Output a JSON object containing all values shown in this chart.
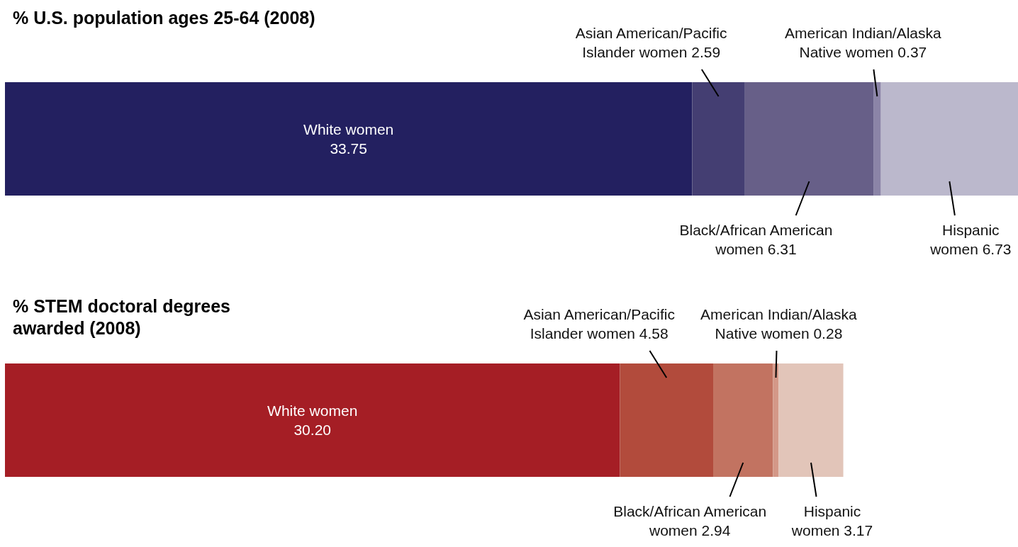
{
  "chart_data": [
    {
      "type": "bar",
      "title": "% U.S. population ages 25-64 (2008)",
      "orientation": "horizontal",
      "stacked": true,
      "tick_labels": false,
      "categories": [
        null
      ],
      "series": [
        {
          "name": "White women",
          "color": "#232060",
          "values": [
            33.75
          ],
          "value_labels": [
            "33.75"
          ]
        },
        {
          "name": "Asian American/Pacific Islander women",
          "color": "#443e72",
          "values": [
            2.59
          ],
          "value_labels": [
            "2.59"
          ]
        },
        {
          "name": "Black/African American women",
          "color": "#675f88",
          "values": [
            6.31
          ],
          "value_labels": [
            "6.31"
          ]
        },
        {
          "name": "American Indian/Alaska Native women",
          "color": "#8b84a7",
          "values": [
            0.37
          ],
          "value_labels": [
            "0.37"
          ]
        },
        {
          "name": "Hispanic women",
          "color": "#bbb8cc",
          "values": [
            6.73
          ],
          "value_labels": [
            "6.73"
          ]
        }
      ]
    },
    {
      "type": "bar",
      "title": "% STEM doctoral degrees awarded (2008)",
      "orientation": "horizontal",
      "stacked": true,
      "tick_labels": false,
      "categories": [
        null
      ],
      "series": [
        {
          "name": "White women",
          "color": "#a51e25",
          "values": [
            30.2
          ],
          "value_labels": [
            "30.20"
          ]
        },
        {
          "name": "Asian American/Pacific Islander women",
          "color": "#b24b3c",
          "values": [
            4.58
          ],
          "value_labels": [
            "4.58"
          ]
        },
        {
          "name": "Black/African American women",
          "color": "#c27361",
          "values": [
            2.94
          ],
          "value_labels": [
            "2.94"
          ]
        },
        {
          "name": "American Indian/Alaska Native women",
          "color": "#d49888",
          "values": [
            0.28
          ],
          "value_labels": [
            "0.28"
          ]
        },
        {
          "name": "Hispanic women",
          "color": "#e2c5b9",
          "values": [
            3.17
          ],
          "value_labels": [
            "3.17"
          ]
        }
      ]
    }
  ]
}
